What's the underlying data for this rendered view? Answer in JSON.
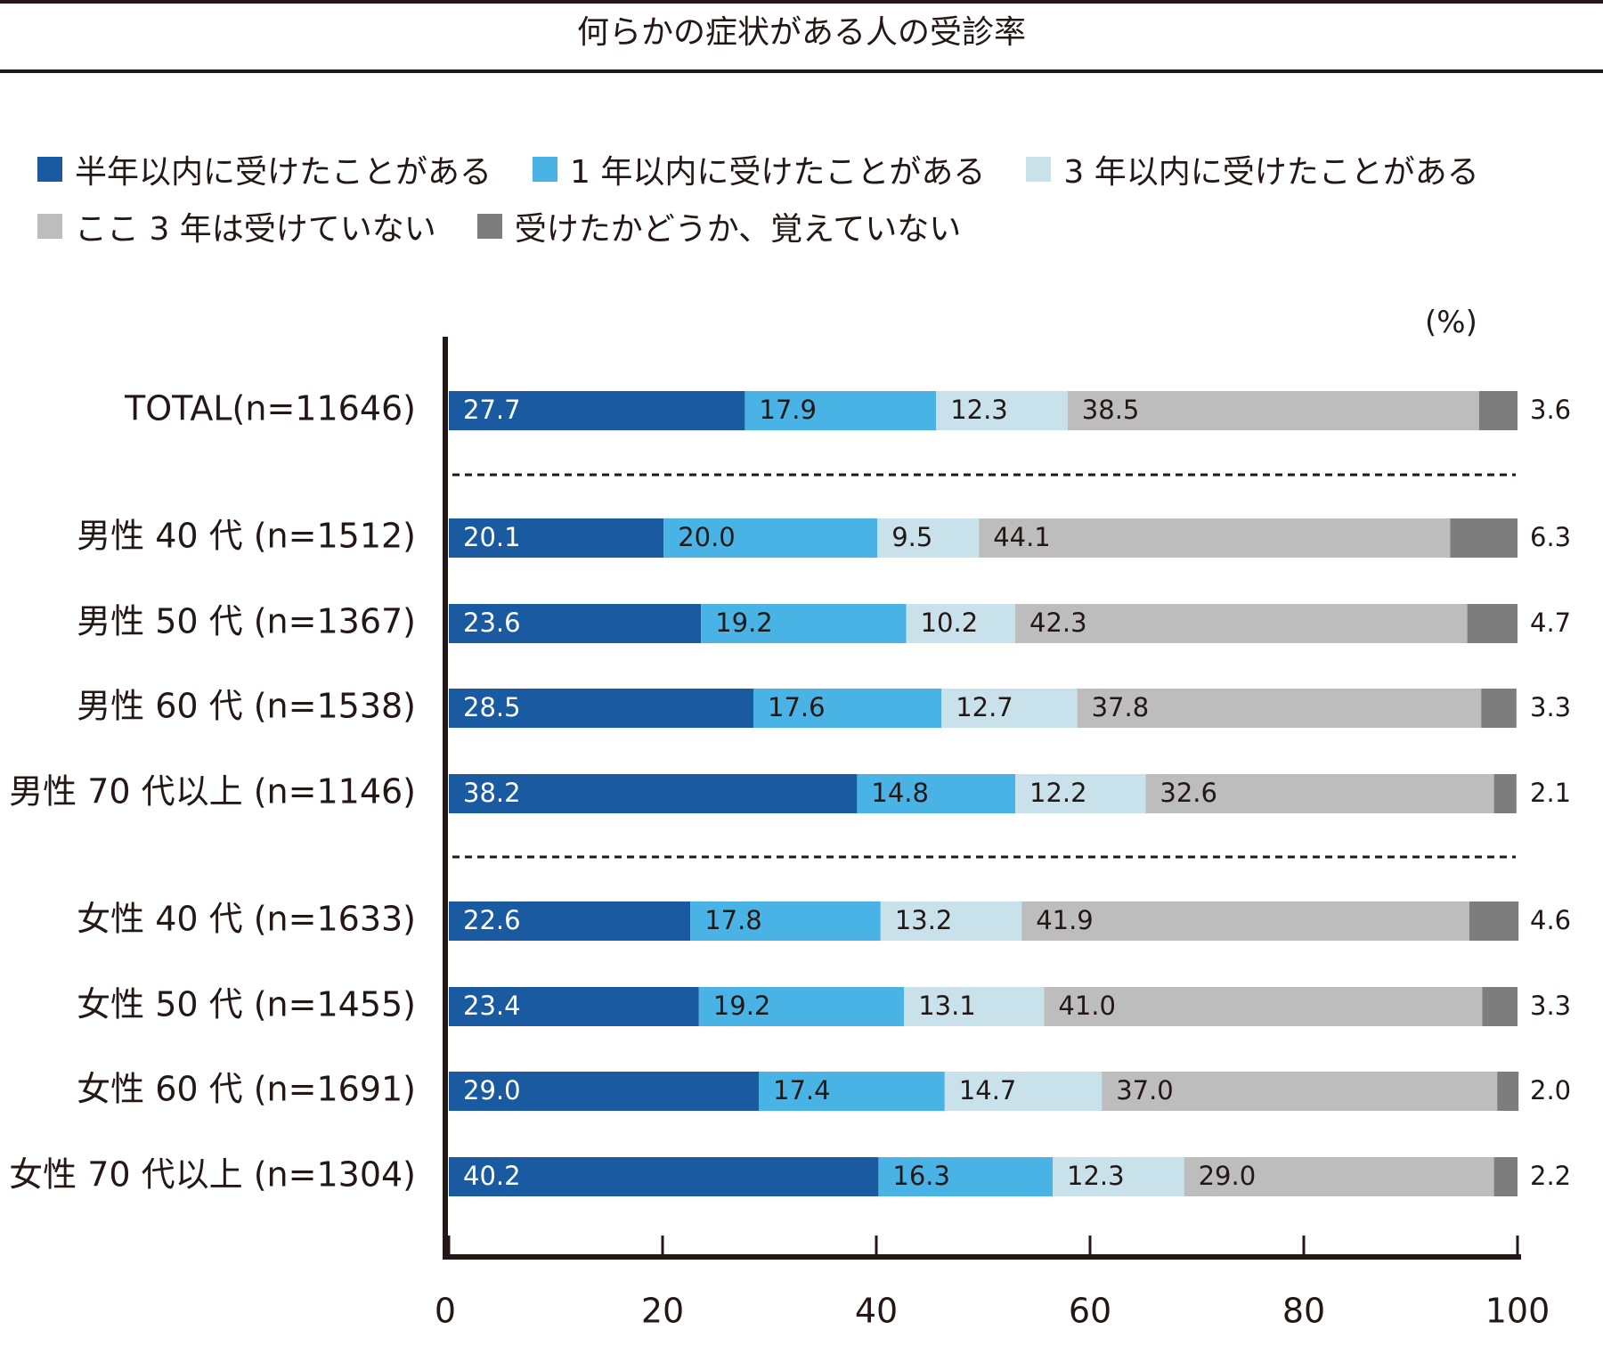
{
  "title": "何らかの症状がある人の受診率",
  "unit": "(%)",
  "colors": [
    "#1a5aa0",
    "#4ab3e6",
    "#c8e1ea",
    "#bdbdbd",
    "#7d7d7d"
  ],
  "legend_rows": [
    [
      0,
      1,
      2
    ],
    [
      3,
      4
    ]
  ],
  "chart_data": {
    "type": "bar",
    "orientation": "horizontal",
    "stacked": true,
    "title": "何らかの症状がある人の受診率",
    "unit": "(%)",
    "xlim": [
      0,
      100
    ],
    "x_ticks": [
      "0",
      "20",
      "40",
      "60",
      "80",
      "100"
    ],
    "categories": [
      "TOTAL(n=11646)",
      "男性 40 代 (n=1512)",
      "男性 50 代 (n=1367)",
      "男性 60 代 (n=1538)",
      "男性 70 代以上 (n=1146)",
      "女性 40 代 (n=1633)",
      "女性 50 代 (n=1455)",
      "女性 60 代 (n=1691)",
      "女性 70 代以上 (n=1304)"
    ],
    "groups": [
      [
        0
      ],
      [
        1,
        2,
        3,
        4
      ],
      [
        5,
        6,
        7,
        8
      ]
    ],
    "series": [
      {
        "name": "半年以内に受けたことがある",
        "values": [
          27.7,
          20.1,
          23.6,
          28.5,
          38.2,
          22.6,
          23.4,
          29.0,
          40.2
        ]
      },
      {
        "name": "1 年以内に受けたことがある",
        "values": [
          17.9,
          20.0,
          19.2,
          17.6,
          14.8,
          17.8,
          19.2,
          17.4,
          16.3
        ]
      },
      {
        "name": "3 年以内に受けたことがある",
        "values": [
          12.3,
          9.5,
          10.2,
          12.7,
          12.2,
          13.2,
          13.1,
          14.7,
          12.3
        ]
      },
      {
        "name": "ここ 3 年は受けていない",
        "values": [
          38.5,
          44.1,
          42.3,
          37.8,
          32.6,
          41.9,
          41.0,
          37.0,
          29.0
        ]
      },
      {
        "name": "受けたかどうか、覚えていない",
        "values": [
          3.6,
          6.3,
          4.7,
          3.3,
          2.1,
          4.6,
          3.3,
          2.0,
          2.2
        ]
      }
    ],
    "legend_position": "top",
    "grid": false
  }
}
